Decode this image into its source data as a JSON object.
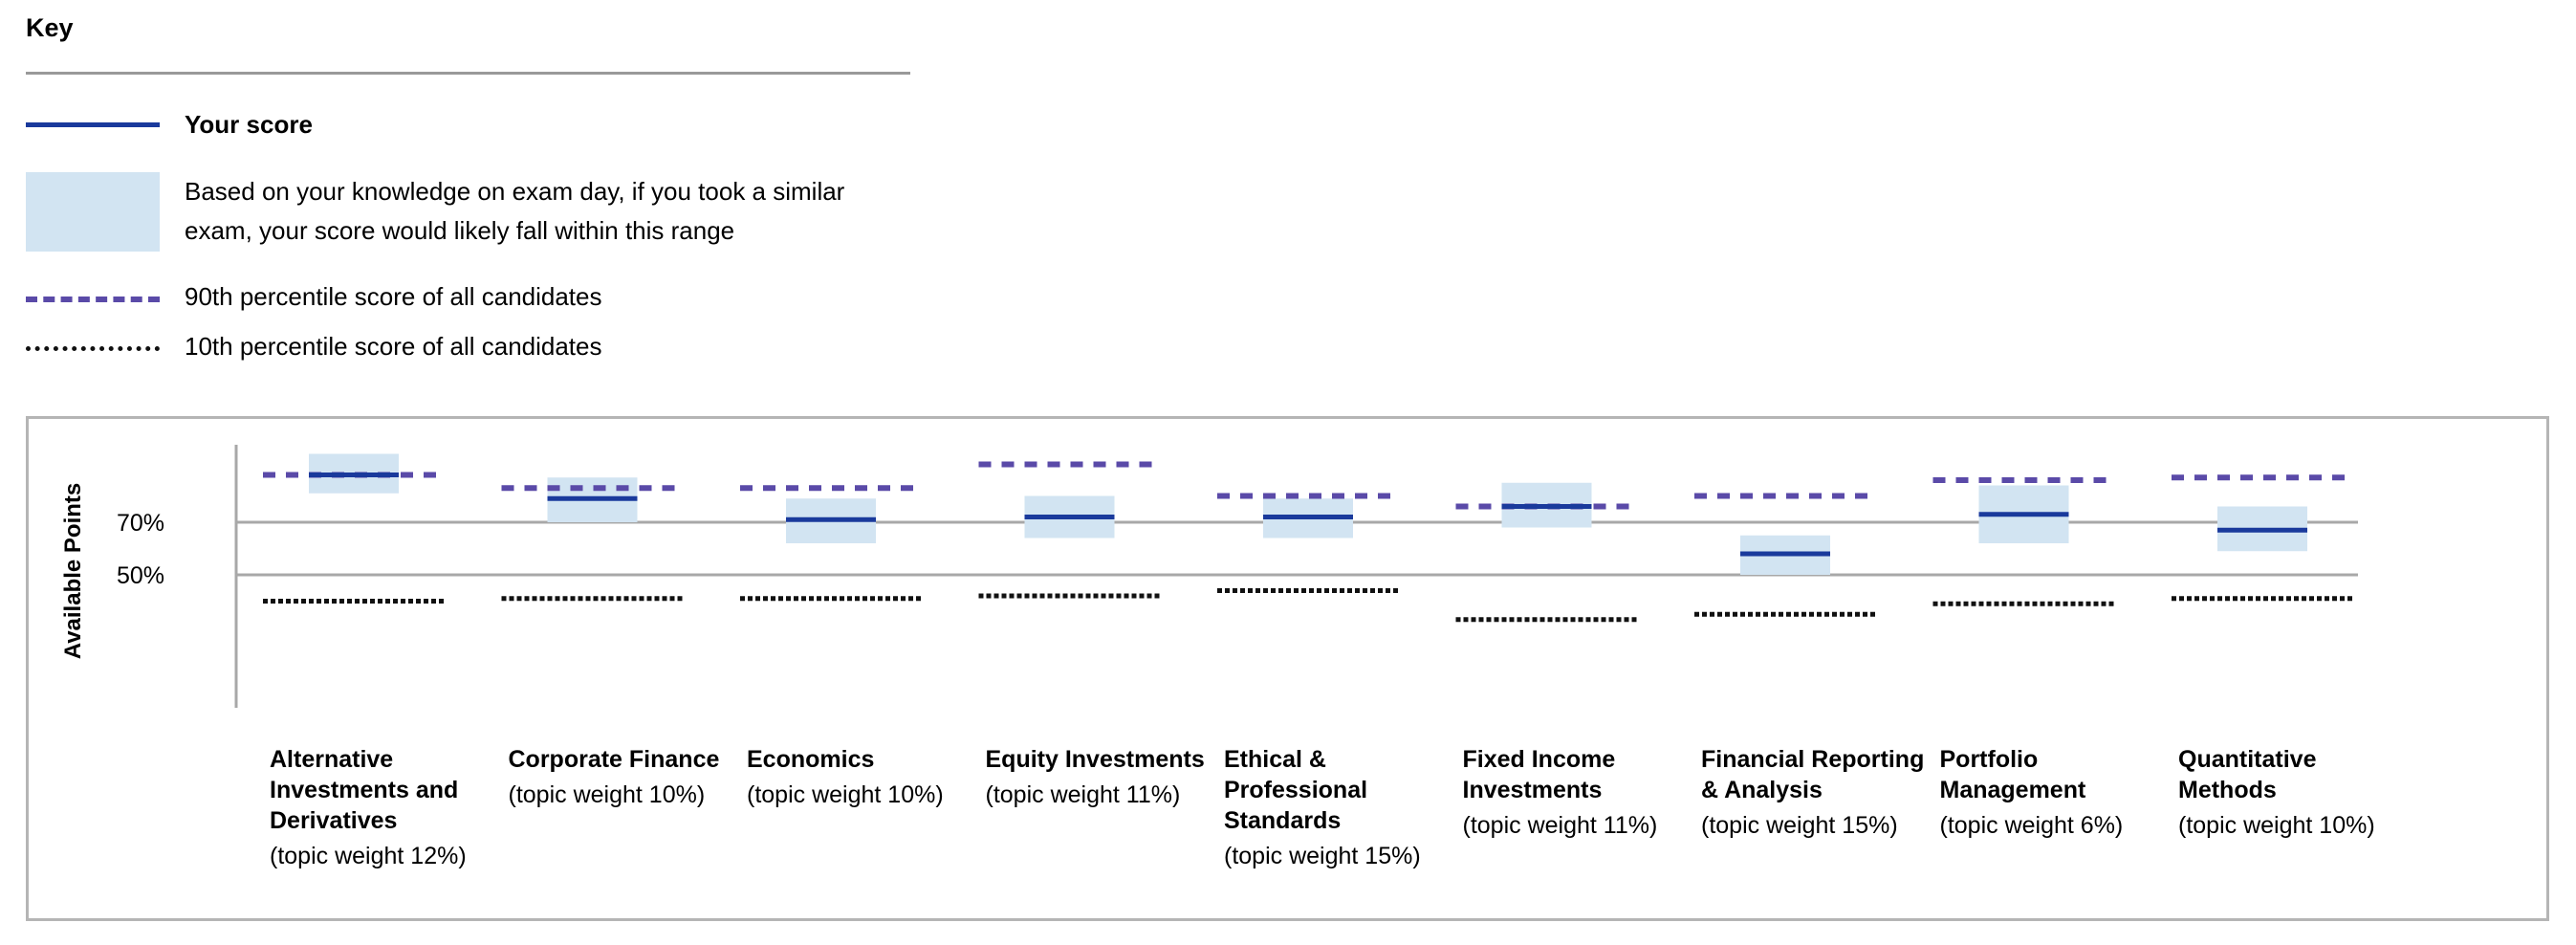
{
  "key": {
    "title": "Key",
    "items": [
      {
        "id": "your-score",
        "text": "Your score",
        "swatch": "solid-line",
        "color": "#1a3a9c"
      },
      {
        "id": "range",
        "text_line1": "Based on your knowledge on exam day, if you took a similar",
        "text_line2": "exam, your score would likely fall within this range",
        "swatch": "box",
        "color": "#d2e4f2"
      },
      {
        "id": "p90",
        "text": "90th percentile score of all candidates",
        "swatch": "dashed-line",
        "color": "#5a4aa8"
      },
      {
        "id": "p10",
        "text": "10th percentile score of all candidates",
        "swatch": "dotted-line",
        "color": "#111111"
      }
    ]
  },
  "chart_data": {
    "type": "range",
    "ylabel": "Available Points",
    "reference_lines": [
      {
        "value": 70,
        "label": "70%"
      },
      {
        "value": 50,
        "label": "50%"
      }
    ],
    "colors": {
      "score": "#1a3a9c",
      "range": "#d2e4f2",
      "p90": "#5a4aa8",
      "p10": "#111111",
      "reference": "#a8a8a8"
    },
    "topics": [
      {
        "name": "Alternative Investments and Derivatives",
        "weight": "(topic weight 12%)",
        "score": 88,
        "range_low": 81,
        "range_high": 96,
        "p90": 88,
        "p10": 40
      },
      {
        "name": "Corporate Finance",
        "weight": "(topic weight 10%)",
        "score": 79,
        "range_low": 70,
        "range_high": 87,
        "p90": 83,
        "p10": 41
      },
      {
        "name": "Economics",
        "weight": "(topic weight 10%)",
        "score": 71,
        "range_low": 62,
        "range_high": 79,
        "p90": 83,
        "p10": 41
      },
      {
        "name": "Equity Investments",
        "weight": "(topic weight 11%)",
        "score": 72,
        "range_low": 64,
        "range_high": 80,
        "p90": 92,
        "p10": 42
      },
      {
        "name": "Ethical & Professional Standards",
        "weight": "(topic weight 15%)",
        "score": 72,
        "range_low": 64,
        "range_high": 79,
        "p90": 80,
        "p10": 44
      },
      {
        "name": "Fixed Income Investments",
        "weight": "(topic weight 11%)",
        "score": 76,
        "range_low": 68,
        "range_high": 85,
        "p90": 76,
        "p10": 33
      },
      {
        "name": "Financial Reporting & Analysis",
        "weight": "(topic weight 15%)",
        "score": 58,
        "range_low": 50,
        "range_high": 65,
        "p90": 80,
        "p10": 35
      },
      {
        "name": "Portfolio Management",
        "weight": "(topic weight 6%)",
        "score": 73,
        "range_low": 62,
        "range_high": 84,
        "p90": 86,
        "p10": 39
      },
      {
        "name": "Quantitative Methods",
        "weight": "(topic weight 10%)",
        "score": 67,
        "range_low": 59,
        "range_high": 76,
        "p90": 87,
        "p10": 41
      }
    ]
  }
}
